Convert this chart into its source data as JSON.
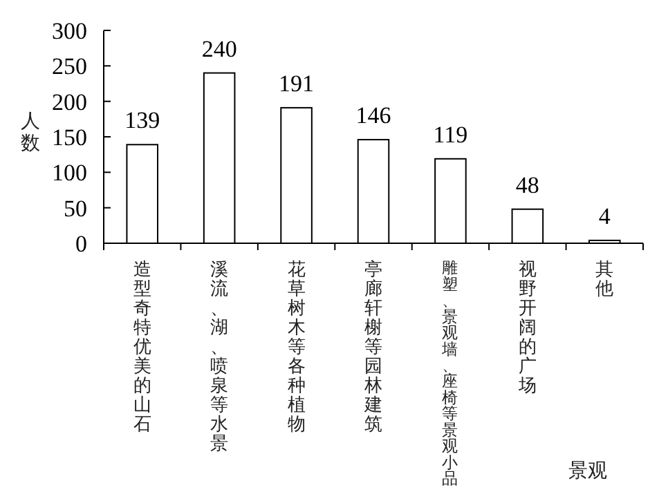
{
  "chart_data": {
    "type": "bar",
    "xlabel": "景观",
    "ylabel": "人数",
    "categories": [
      "造型奇特优美的山石",
      "溪流、湖、喷泉等水景",
      "花草树木等各种植物",
      "亭廊轩榭等园林建筑",
      "雕塑、景观墙、座椅等景观小品",
      "视野开阔的广场",
      "其他"
    ],
    "values": [
      139,
      240,
      191,
      146,
      119,
      48,
      4
    ],
    "color": "#ffffff",
    "ylim": [
      0,
      300
    ],
    "yticks": [
      0,
      50,
      100,
      150,
      200,
      250,
      300
    ],
    "data_labels": true,
    "grid": false
  }
}
